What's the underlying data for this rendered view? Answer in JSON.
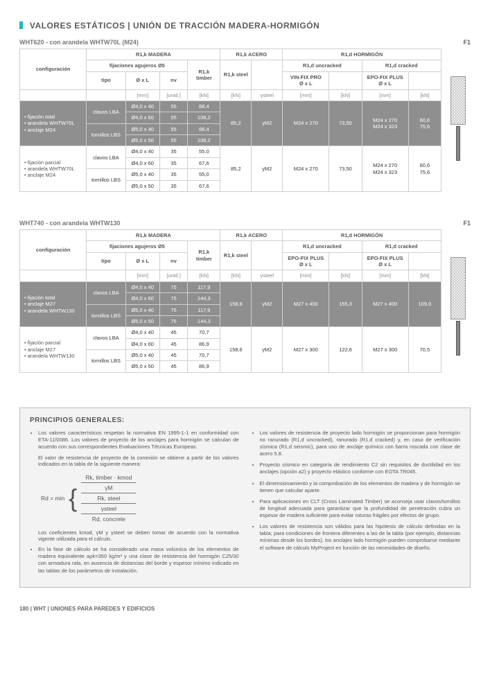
{
  "page": {
    "title": "VALORES ESTÁTICOS | UNIÓN DE TRACCIÓN MADERA-HORMIGÓN",
    "footer": "180  |  WHT  |  UNIONES PARA PAREDES Y EDIFICIOS"
  },
  "t1": {
    "subtitle": "WHT620 - con arandela WHTW70L (M24)",
    "f1": "F1",
    "hdr": {
      "config": "configuración",
      "madera": "R1,k MADERA",
      "acero": "R1,k ACERO",
      "hormigon": "R1,d HORMIGÓN",
      "fij": "fijaciones agujeros Ø5",
      "tipo": "tipo",
      "oxl": "Ø x L",
      "nv": "nv",
      "rtimber": "R1,k timber",
      "rsteel": "R1,k steel",
      "runcr": "R1,d uncracked",
      "rcr": "R1,d cracked",
      "vin": "VIN-FIX PRO\nØ x L",
      "epo": "EPO-FIX PLUS\nØ x L",
      "ysteel": "γsteel",
      "u_mm": "[mm]",
      "u_un": "[unid.]",
      "u_kn": "[kN]"
    },
    "rows": [
      {
        "sel": true,
        "cfg": "• fijación total\n• arandela WHTW70L\n• anclaje M24",
        "r": [
          [
            "clavos LBA",
            "Ø4,0 x 40",
            "55",
            "88,4"
          ],
          [
            "",
            "Ø4,0 x 60",
            "55",
            "108,2"
          ],
          [
            "tornillos LBS",
            "Ø5,0 x 40",
            "55",
            "88,4"
          ],
          [
            "",
            "Ø5,0 x 50",
            "55",
            "108,2"
          ]
        ],
        "steel_kn": "85,2",
        "ysteel": "γM2",
        "uncr_dim": "M24 x 270",
        "uncr_kn": "73,50",
        "cr_dim": "M24 x 270\nM24 x 323",
        "cr_kn": "60,6\n75,6"
      },
      {
        "sel": false,
        "cfg": "• fijación parcial\n• arandela WHTW70L\n• anclaje M24",
        "r": [
          [
            "clavos LBA",
            "Ø4,0 x 40",
            "35",
            "55,0"
          ],
          [
            "",
            "Ø4,0 x 60",
            "35",
            "67,6"
          ],
          [
            "tornillos LBS",
            "Ø5,0 x 40",
            "35",
            "55,0"
          ],
          [
            "",
            "Ø5,0 x 50",
            "35",
            "67,6"
          ]
        ],
        "steel_kn": "85,2",
        "ysteel": "γM2",
        "uncr_dim": "M24 x 270",
        "uncr_kn": "73,50",
        "cr_dim": "M24 x 270\nM24 x 323",
        "cr_kn": "60,6\n75,6"
      }
    ]
  },
  "t2": {
    "subtitle": "WHT740 - con arandela WHTW130",
    "f1": "F1",
    "rows": [
      {
        "sel": true,
        "cfg": "• fijación total\n• anclaje M27\n• arandela WHTW130",
        "r": [
          [
            "clavos LBA",
            "Ø4,0 x 40",
            "75",
            "117,9"
          ],
          [
            "",
            "Ø4,0 x 60",
            "75",
            "144,3"
          ],
          [
            "tornillos LBS",
            "Ø5,0 x 40",
            "75",
            "117,9"
          ],
          [
            "",
            "Ø5,0 x 50",
            "75",
            "144,3"
          ]
        ],
        "steel_kn": "158,6",
        "ysteel": "γM2",
        "uncr_lbl": "EPO-FIX PLUS\nØ x L",
        "uncr_dim": "M27 x 400",
        "uncr_kn": "155,3",
        "cr_lbl": "EPO-FIX PLUS\nØ x L",
        "cr_dim": "M27 x 400",
        "cr_kn": "109,0"
      },
      {
        "sel": false,
        "cfg": "• fijación parcial\n• anclaje M27\n• arandela WHTW130",
        "r": [
          [
            "clavos LBA",
            "Ø4,0 x 40",
            "45",
            "70,7"
          ],
          [
            "",
            "Ø4,0 x 60",
            "45",
            "86,9"
          ],
          [
            "tornillos LBS",
            "Ø5,0 x 40",
            "45",
            "70,7"
          ],
          [
            "",
            "Ø5,0 x 50",
            "45",
            "86,9"
          ]
        ],
        "steel_kn": "158,6",
        "ysteel": "γM2",
        "uncr_dim": "M27 x 300",
        "uncr_kn": "122,6",
        "cr_dim": "M27 x 300",
        "cr_kn": "70,5"
      }
    ]
  },
  "prin": {
    "title": "PRINCIPIOS GENERALES:",
    "left": {
      "b1": "Los valores característicos respetan la normativa EN 1995-1-1 en conformidad con ETA-11/0086. Los valores de proyecto de los anclajes para hormigón se calculan de acuerdo con sus correspondientes Evaluaciones Técnicas Europeas.",
      "p1": "El valor de resistencia de proyecto de la conexión se obtiene a partir de los valores indicados en la tabla de la siguiente manera:",
      "f_lhs": "Rd = min",
      "f1": "Rk, timber · kmod",
      "f2": "γM",
      "f3": "Rk, steel",
      "f4": "γsteel",
      "f5": "Rd, concrete",
      "p2": "Los coeficientes kmod, γM y γsteel se deben tomar de acuerdo con la normativa vigente utilizada para el cálculo.",
      "b2": "En la fase de cálculo se ha considerado una masa volúmica de los elementos de madera equivalente aρk=350 kg/m³ y una clase de resistencia del hormigón C25/30 con armadura rala, en ausencia de distancias del borde y espesor mínimo indicado en las tablas de los parámetros de instalación."
    },
    "right": {
      "b1": "Los valores de resistencia de proyecto lado hormigón se proporcionan para hormigón no ranurado (R1,d uncracked), ranurado (R1,d cracked) y, en caso de verificación sísmica (R1,d seismic), para uso de anclaje químico con barra roscada con clase de acero 5.8.",
      "b2": "Proyecto sísmico en categoría de rendimiento C2 sin requisitos de ductilidad en los anclajes (opción a2) y proyecto elástico conforme con EOTA TR045.",
      "b3": "El dimensionamiento y la comprobación de los elementos de madera y de hormigón se tienen que calcular aparte.",
      "b4": "Para aplicaciones en CLT (Cross Laminated Timber) se aconseja usar clavos/tornillos de longitud adecuada para garantizar que la profundidad de penetración cubra un espesor de madera suficiente para evitar roturas frágiles por efectos de grupo.",
      "b5": "Los valores de resistencia son válidos para las hipótesis de cálculo definidas en la tabla; para condiciones de frontera diferentes a las de la tabla (por ejemplo, distancias mínimas desde los bordes), los anclajes lado hormigón pueden comprobarse mediante el software de cálculo MyProject en función de las necesidades de diseño."
    }
  },
  "colors": {
    "accent": "#1fb6c1",
    "sel_bg": "#8f8f8f",
    "border": "#cfcfcf",
    "text": "#555555",
    "box_bg": "#f3f3f3"
  }
}
